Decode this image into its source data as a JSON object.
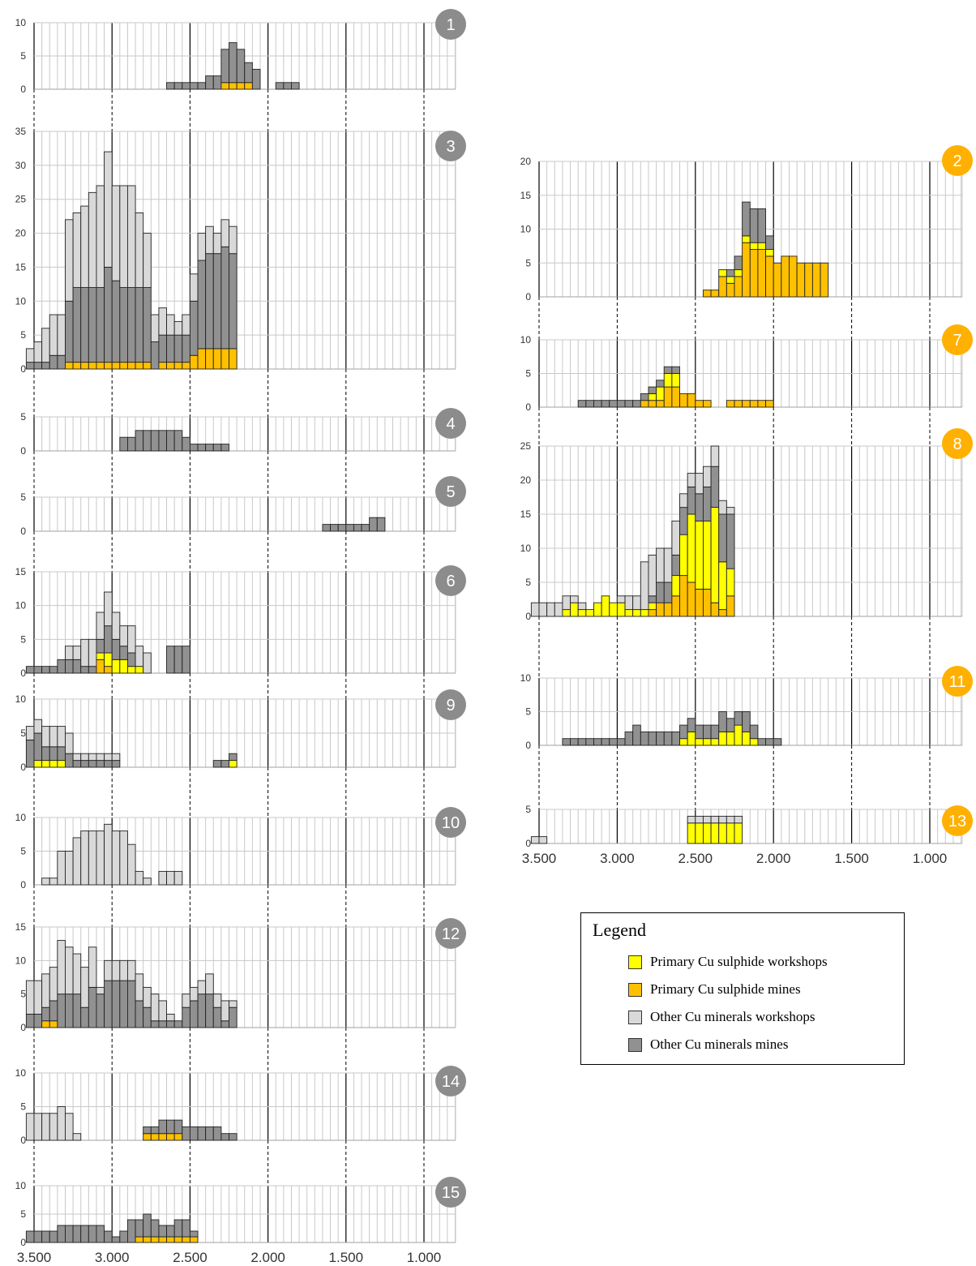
{
  "colors": {
    "psw": "#FFFF00",
    "psm": "#FFC000",
    "ocw": "#D9D9D9",
    "ocm": "#919191",
    "badge_grey": "#8C8C8C",
    "badge_orange": "#FFB000"
  },
  "legend": {
    "title": "Legend",
    "items": [
      {
        "key": "psw",
        "label": "Primary Cu sulphide workshops"
      },
      {
        "key": "psm",
        "label": "Primary Cu sulphide mines"
      },
      {
        "key": "ocw",
        "label": "Other Cu minerals workshops"
      },
      {
        "key": "ocm",
        "label": "Other Cu minerals mines"
      }
    ]
  },
  "x_axis": {
    "bin_width": 50,
    "ticks": [
      {
        "v": 3500,
        "label": "3.500"
      },
      {
        "v": 3000,
        "label": "3.000"
      },
      {
        "v": 2500,
        "label": "2.500"
      },
      {
        "v": 2000,
        "label": "2.000"
      },
      {
        "v": 1500,
        "label": "1.500"
      },
      {
        "v": 1000,
        "label": "1.000"
      }
    ]
  },
  "chart_data": [
    {
      "type": "bar",
      "id": "1",
      "badge": "orange-no",
      "ymax": 10,
      "yticks": [
        0,
        5,
        10
      ],
      "start": 2650,
      "psm": [
        0,
        0,
        0,
        0,
        0,
        0,
        0,
        1,
        1,
        1,
        1,
        0,
        0,
        0,
        0,
        0,
        0
      ],
      "ocm": [
        1,
        1,
        1,
        1,
        1,
        2,
        2,
        5,
        6,
        5,
        3,
        3,
        0,
        0,
        1,
        1,
        1
      ]
    },
    {
      "type": "bar",
      "id": "3",
      "ymax": 35,
      "yticks": [
        0,
        5,
        10,
        15,
        20,
        25,
        30,
        35
      ],
      "start": 3550,
      "psm": [
        0,
        0,
        0,
        0,
        0,
        1,
        1,
        1,
        1,
        1,
        1,
        1,
        1,
        1,
        1,
        1,
        0,
        1,
        1,
        1,
        1,
        2,
        3,
        3,
        3,
        3,
        3
      ],
      "ocm": [
        1,
        1,
        1,
        2,
        2,
        9,
        11,
        11,
        11,
        11,
        14,
        12,
        11,
        11,
        11,
        11,
        4,
        4,
        4,
        4,
        4,
        8,
        13,
        14,
        14,
        15,
        14
      ],
      "ocw": [
        2,
        3,
        5,
        6,
        6,
        12,
        11,
        12,
        14,
        15,
        17,
        14,
        15,
        15,
        11,
        8,
        4,
        4,
        3,
        2,
        3,
        4,
        4,
        4,
        3,
        4,
        4
      ]
    },
    {
      "type": "bar",
      "id": "4",
      "ymax": 5,
      "yticks": [
        0,
        5
      ],
      "start": 2950,
      "ocm": [
        2,
        2,
        3,
        3,
        3,
        3,
        3,
        3,
        2,
        1,
        1,
        1,
        1,
        1
      ]
    },
    {
      "type": "bar",
      "id": "5",
      "ymax": 5,
      "yticks": [
        0,
        5
      ],
      "start": 1650,
      "ocm": [
        1,
        1,
        1,
        1,
        1,
        1,
        2,
        2
      ]
    },
    {
      "type": "bar",
      "id": "6",
      "ymax": 15,
      "yticks": [
        0,
        5,
        10,
        15
      ],
      "start": 3550,
      "psm": [
        0,
        0,
        0,
        0,
        0,
        0,
        0,
        0,
        0,
        2,
        1,
        0,
        0,
        0,
        0,
        0,
        0,
        0,
        0,
        0,
        0
      ],
      "psw": [
        0,
        0,
        0,
        0,
        0,
        0,
        0,
        0,
        0,
        1,
        2,
        2,
        2,
        1,
        1,
        0,
        0,
        0,
        0,
        0,
        0
      ],
      "ocm": [
        1,
        1,
        1,
        1,
        2,
        2,
        2,
        1,
        1,
        2,
        4,
        3,
        2,
        2,
        0,
        0,
        0,
        0,
        4,
        4,
        4
      ],
      "ocw": [
        0,
        0,
        0,
        0,
        0,
        2,
        2,
        4,
        4,
        4,
        5,
        4,
        3,
        4,
        3,
        3,
        0,
        0,
        0,
        0,
        0
      ]
    },
    {
      "type": "bar",
      "id": "9",
      "ymax": 10,
      "yticks": [
        0,
        5,
        10
      ],
      "start": 3550,
      "psw": [
        0,
        1,
        1,
        1,
        1,
        0,
        0,
        0,
        0,
        0,
        0,
        0,
        0,
        0,
        0,
        0,
        0,
        0,
        0,
        0,
        0,
        0,
        0,
        0,
        0,
        0,
        1
      ],
      "ocm": [
        4,
        4,
        2,
        2,
        2,
        2,
        1,
        1,
        1,
        1,
        1,
        1,
        0,
        0,
        0,
        0,
        0,
        0,
        0,
        0,
        0,
        0,
        0,
        0,
        1,
        1,
        1
      ],
      "ocw": [
        2,
        2,
        3,
        3,
        3,
        3,
        1,
        1,
        1,
        1,
        1,
        1,
        0,
        0,
        0,
        0,
        0,
        0,
        0,
        0,
        0,
        0,
        0,
        0,
        0,
        0,
        0
      ]
    },
    {
      "type": "bar",
      "id": "10",
      "ymax": 10,
      "yticks": [
        0,
        5,
        10
      ],
      "start": 3450,
      "ocw": [
        1,
        1,
        5,
        5,
        7,
        8,
        8,
        8,
        9,
        8,
        8,
        6,
        2,
        1,
        0,
        2,
        2,
        2
      ]
    },
    {
      "type": "bar",
      "id": "12",
      "ymax": 15,
      "yticks": [
        0,
        5,
        10,
        15
      ],
      "start": 3550,
      "psm": [
        0,
        0,
        1,
        1,
        0,
        0,
        0,
        0,
        0,
        0,
        0,
        0,
        0,
        0,
        0,
        0,
        0,
        0,
        0,
        0,
        0,
        0,
        0,
        0,
        0,
        0,
        0
      ],
      "ocm": [
        2,
        2,
        2,
        3,
        5,
        5,
        5,
        3,
        6,
        5,
        7,
        7,
        7,
        7,
        4,
        3,
        1,
        1,
        1,
        1,
        3,
        4,
        5,
        5,
        3,
        1,
        3
      ],
      "ocw": [
        5,
        5,
        5,
        5,
        8,
        7,
        6,
        6,
        6,
        1,
        3,
        3,
        3,
        3,
        4,
        3,
        4,
        3,
        1,
        0,
        2,
        2,
        2,
        3,
        2,
        3,
        1
      ]
    },
    {
      "type": "bar",
      "id": "14",
      "ymax": 10,
      "yticks": [
        0,
        5,
        10
      ],
      "start": 3550,
      "psm": [
        0,
        0,
        0,
        0,
        0,
        0,
        0,
        0,
        0,
        0,
        0,
        0,
        0,
        0,
        0,
        1,
        1,
        1,
        1,
        1,
        0,
        0,
        0,
        0,
        0,
        0,
        0
      ],
      "ocm": [
        0,
        0,
        0,
        0,
        0,
        0,
        0,
        0,
        0,
        0,
        0,
        0,
        0,
        0,
        0,
        1,
        1,
        2,
        2,
        2,
        2,
        2,
        2,
        2,
        2,
        1,
        1
      ],
      "ocw": [
        4,
        4,
        4,
        4,
        5,
        4,
        1,
        0,
        0,
        0,
        0,
        0,
        0,
        0,
        0,
        0,
        0,
        0,
        0,
        0,
        0,
        0,
        0,
        0,
        0,
        0,
        0
      ]
    },
    {
      "type": "bar",
      "id": "15",
      "ymax": 10,
      "yticks": [
        0,
        5,
        10
      ],
      "start": 3550,
      "psm": [
        0,
        0,
        0,
        0,
        0,
        0,
        0,
        0,
        0,
        0,
        0,
        0,
        0,
        0,
        1,
        1,
        1,
        1,
        1,
        1,
        1,
        1,
        0,
        0,
        0
      ],
      "ocm": [
        2,
        2,
        2,
        2,
        3,
        3,
        3,
        3,
        3,
        3,
        2,
        1,
        2,
        4,
        3,
        4,
        3,
        2,
        2,
        3,
        3,
        1,
        0,
        0,
        0
      ]
    },
    {
      "type": "bar",
      "id": "2",
      "ymax": 20,
      "yticks": [
        0,
        5,
        10,
        15,
        20
      ],
      "start": 2450,
      "psm": [
        1,
        1,
        3,
        2,
        3,
        8,
        7,
        7,
        6,
        5,
        6,
        6,
        5,
        5,
        5,
        5
      ],
      "psw": [
        0,
        0,
        1,
        1,
        1,
        1,
        1,
        1,
        1,
        0,
        0,
        0,
        0,
        0,
        0,
        0
      ],
      "ocm": [
        0,
        0,
        0,
        1,
        2,
        5,
        5,
        5,
        2,
        0,
        0,
        0,
        0,
        0,
        0,
        0
      ]
    },
    {
      "type": "bar",
      "id": "7",
      "ymax": 10,
      "yticks": [
        0,
        5,
        10
      ],
      "start": 3250,
      "psm": [
        0,
        0,
        0,
        0,
        0,
        0,
        0,
        0,
        1,
        1,
        1,
        3,
        3,
        2,
        2,
        1,
        1,
        0,
        0,
        1,
        1,
        1,
        1,
        1,
        1
      ],
      "psw": [
        0,
        0,
        0,
        0,
        0,
        0,
        0,
        0,
        0,
        1,
        2,
        2,
        2,
        0,
        0,
        0,
        0,
        0,
        0,
        0,
        0,
        0,
        0,
        0,
        0
      ],
      "ocm": [
        1,
        1,
        1,
        1,
        1,
        1,
        1,
        1,
        1,
        1,
        1,
        1,
        1,
        0,
        0,
        0,
        0,
        0,
        0,
        0,
        0,
        0,
        0,
        0,
        0
      ]
    },
    {
      "type": "bar",
      "id": "8",
      "ymax": 25,
      "yticks": [
        0,
        5,
        10,
        15,
        20,
        25
      ],
      "start": 3550,
      "psm": [
        0,
        0,
        0,
        0,
        0,
        0,
        0,
        0,
        0,
        0,
        0,
        0,
        0,
        0,
        0,
        1,
        2,
        2,
        3,
        6,
        5,
        4,
        4,
        2,
        1,
        3
      ],
      "psw": [
        0,
        0,
        0,
        0,
        1,
        2,
        1,
        1,
        2,
        3,
        2,
        2,
        1,
        1,
        1,
        1,
        0,
        0,
        3,
        6,
        10,
        10,
        10,
        14,
        7,
        4
      ],
      "ocm": [
        0,
        0,
        0,
        0,
        0,
        0,
        0,
        0,
        0,
        0,
        0,
        0,
        0,
        0,
        0,
        1,
        3,
        3,
        3,
        4,
        4,
        4,
        5,
        6,
        7,
        8
      ],
      "ocw": [
        2,
        2,
        2,
        2,
        2,
        1,
        1,
        0,
        0,
        0,
        0,
        1,
        2,
        2,
        7,
        6,
        5,
        5,
        5,
        2,
        2,
        3,
        3,
        3,
        2,
        1
      ]
    },
    {
      "type": "bar",
      "id": "11",
      "ymax": 10,
      "yticks": [
        0,
        5,
        10
      ],
      "start": 3350,
      "psw": [
        0,
        0,
        0,
        0,
        0,
        0,
        0,
        0,
        0,
        0,
        0,
        0,
        0,
        0,
        0,
        1,
        2,
        1,
        1,
        1,
        2,
        2,
        3,
        2,
        1,
        0,
        0,
        0
      ],
      "ocm": [
        1,
        1,
        1,
        1,
        1,
        1,
        1,
        1,
        2,
        3,
        2,
        2,
        2,
        2,
        2,
        2,
        2,
        2,
        2,
        2,
        3,
        2,
        2,
        3,
        2,
        1,
        1,
        1
      ]
    },
    {
      "type": "bar",
      "id": "13",
      "ymax": 5,
      "yticks": [
        0,
        5
      ],
      "start": 3550,
      "psw": [
        0,
        0,
        0,
        0,
        0,
        0,
        0,
        0,
        0,
        0,
        0,
        0,
        0,
        0,
        0,
        0,
        0,
        0,
        0,
        0,
        3,
        3,
        3,
        3,
        3,
        3,
        3
      ],
      "ocw": [
        1,
        1,
        0,
        0,
        0,
        0,
        0,
        0,
        0,
        0,
        0,
        0,
        0,
        0,
        0,
        0,
        0,
        0,
        0,
        0,
        1,
        1,
        1,
        1,
        1,
        1,
        1
      ]
    }
  ]
}
